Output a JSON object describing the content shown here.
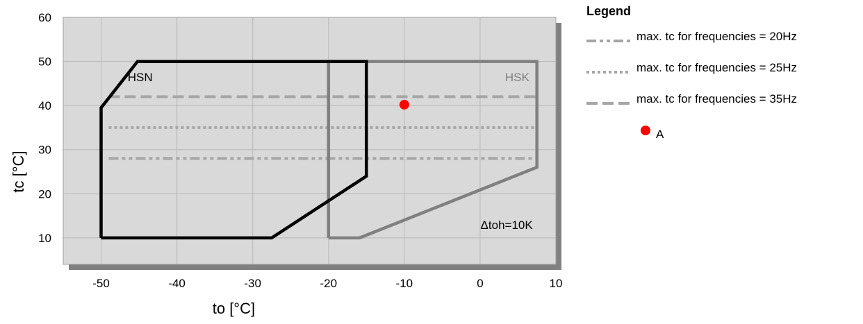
{
  "chart_data": {
    "type": "line",
    "xlabel": "to [°C]",
    "ylabel": "tc [°C]",
    "xlim": [
      -55,
      10
    ],
    "ylim": [
      4,
      60
    ],
    "x_ticks": [
      -50,
      -40,
      -30,
      -20,
      -10,
      0,
      10
    ],
    "y_ticks": [
      10,
      20,
      30,
      40,
      50,
      60
    ],
    "grid": true,
    "legend_position": "right",
    "regions": [
      {
        "name": "HSN",
        "color": "#000000",
        "points": [
          [
            -50,
            10
          ],
          [
            -27.5,
            10
          ],
          [
            -15,
            24
          ],
          [
            -15,
            50
          ],
          [
            -45.2,
            50
          ],
          [
            -50,
            39.5
          ],
          [
            -50,
            10
          ]
        ]
      },
      {
        "name": "HSK",
        "color": "#808080",
        "points": [
          [
            -20,
            10
          ],
          [
            -15.9,
            10
          ],
          [
            7.5,
            26
          ],
          [
            7.5,
            50
          ],
          [
            -20,
            50
          ],
          [
            -20,
            10
          ]
        ]
      }
    ],
    "series": [
      {
        "name": "max. tc for frequencies = 20Hz",
        "style": "dash-dot-dot",
        "color": "#a6a6a6",
        "x": [
          -49,
          7.5
        ],
        "y": [
          28,
          28
        ]
      },
      {
        "name": "max. tc for frequencies = 25Hz",
        "style": "dotted",
        "color": "#a6a6a6",
        "x": [
          -49,
          7.5
        ],
        "y": [
          35,
          35
        ]
      },
      {
        "name": "max. tc for frequencies = 35Hz",
        "style": "dashed",
        "color": "#a6a6a6",
        "x": [
          -49,
          7.5
        ],
        "y": [
          42,
          42
        ]
      }
    ],
    "points": [
      {
        "name": "A",
        "x": -10,
        "y": 40.2,
        "color": "#ff0000"
      }
    ],
    "annotations": [
      {
        "text": "Δtoh=10K",
        "x": 7.5,
        "y": 13
      }
    ],
    "legend": {
      "title": "Legend"
    }
  }
}
